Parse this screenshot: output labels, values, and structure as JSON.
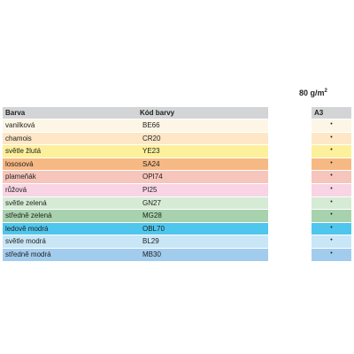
{
  "weight_label": "80 g/m",
  "weight_sup": "2",
  "header": {
    "col_name": "Barva",
    "col_code": "Kód barvy",
    "col_size": "A3"
  },
  "rows": [
    {
      "name": "vanilková",
      "code": "BE66",
      "mark": "•",
      "color": "#fdf6e6"
    },
    {
      "name": "chamois",
      "code": "CR20",
      "mark": "•",
      "color": "#fde7c6"
    },
    {
      "name": "světle žlutá",
      "code": "YE23",
      "mark": "•",
      "color": "#fdf09a"
    },
    {
      "name": "lososová",
      "code": "SA24",
      "mark": "•",
      "color": "#f7b984"
    },
    {
      "name": "plameňák",
      "code": "OPI74",
      "mark": "•",
      "color": "#f6c5bb"
    },
    {
      "name": "růžová",
      "code": "PI25",
      "mark": "•",
      "color": "#f8d4e4"
    },
    {
      "name": "světle zelená",
      "code": "GN27",
      "mark": "•",
      "color": "#d6ebd5"
    },
    {
      "name": "středně zelená",
      "code": "MG28",
      "mark": "•",
      "color": "#a8d2ad"
    },
    {
      "name": "ledově modrá",
      "code": "OBL70",
      "mark": "•",
      "color": "#4fc6ee"
    },
    {
      "name": "světle modrá",
      "code": "BL29",
      "mark": "•",
      "color": "#c8e6f6"
    },
    {
      "name": "středně modrá",
      "code": "MB30",
      "mark": "•",
      "color": "#a2ccee"
    }
  ]
}
